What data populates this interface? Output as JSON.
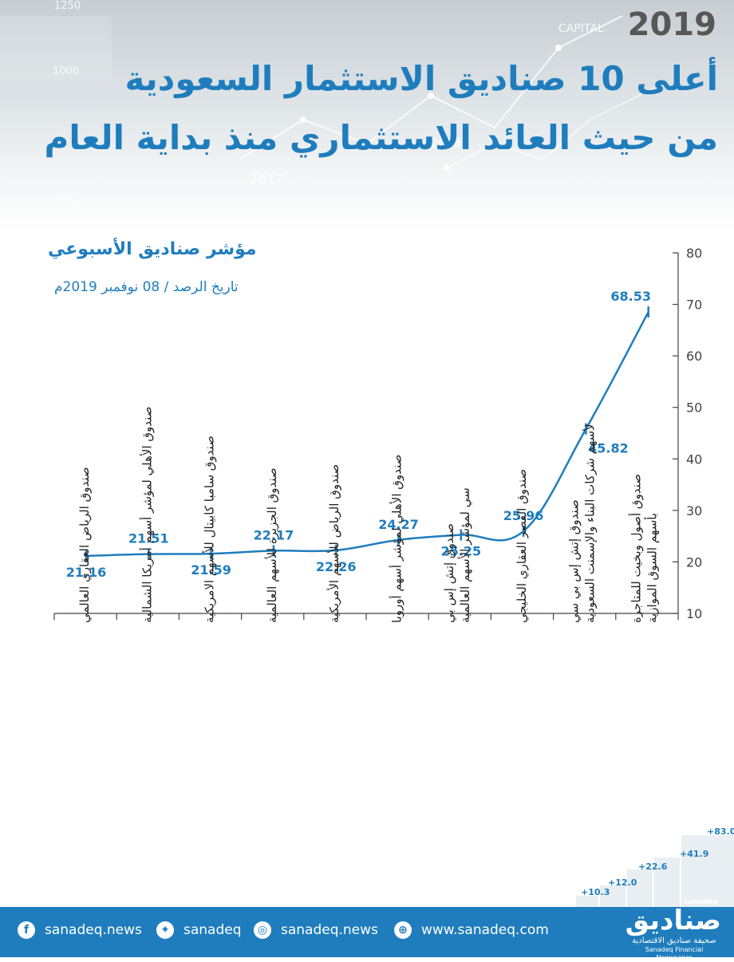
{
  "header": {
    "year": "2019",
    "title_line1": "أعلى 10 صناديق الاستثمار السعودية",
    "title_line2": "من حيث العائد الاستثماري منذ بداية العام",
    "background_numbers": [
      "1250",
      "1000",
      "500",
      "2017",
      "2013",
      "CAPITAL"
    ]
  },
  "chart_data": {
    "type": "line",
    "title": "مؤشر صناديق الأسبوعي",
    "subtitle": "تاريخ الرصد / 08 نوفمبر 2019م",
    "categories": [
      "صندوق الرياض العقاري العالمي",
      "صندوق الأهلي لمؤشر أسهم أمريكا الشمالية",
      "صندوق سامبا كابيتال للأسهم الامريكية",
      "صندوق الجزيرة للأسهم العالمية",
      "صندوق الرياض للأسهم الأمريكية",
      "صندوق الأهلي لمؤشر أسهم أوروبا",
      "صندوق إتش إس بي سي لمؤشر الأسهم العالمية",
      "صندوق القصر العقاري الخليجي",
      "صندوق إتش إس بي سي لأسهم شركات البناء والإسمنت السعودية",
      "صندوق أصول وبخيت للمتاجرة بأسهم السوق الموازية"
    ],
    "values": [
      21.16,
      21.51,
      21.59,
      22.17,
      22.26,
      24.27,
      25.25,
      25.96,
      45.82,
      68.53
    ],
    "data_labels": [
      "21.16",
      "21.51",
      "21.59",
      "22.17",
      "22.26",
      "24.27",
      "25.25",
      "25.96",
      "45.82",
      "68.53"
    ],
    "ylim": [
      10,
      80
    ],
    "yticks": [
      "10",
      "20",
      "30",
      "40",
      "50",
      "60",
      "70",
      "80"
    ],
    "y_axis_side": "right",
    "grid": false,
    "colors": {
      "line": "#1f7dbd",
      "axis": "#444444",
      "labels": "#1f7dbd"
    }
  },
  "footer": {
    "facebook": "sanadeq.news",
    "twitter": "sanadeq",
    "instagram": "sanadeq.news",
    "website": "www.sanadeq.com",
    "icons": [
      "facebook-icon",
      "twitter-icon",
      "instagram-icon",
      "globe-icon"
    ],
    "brand_latin": "Sanadeq",
    "brand_logo": "صناديق",
    "brand_sub_ar": "صحيفة صناديق الاقتصادية",
    "brand_sub_en": "Sanadeq Financial Newspaper",
    "steps": [
      "+10.3",
      "+12.0",
      "+22.6",
      "+41.9",
      "+83.0"
    ]
  }
}
